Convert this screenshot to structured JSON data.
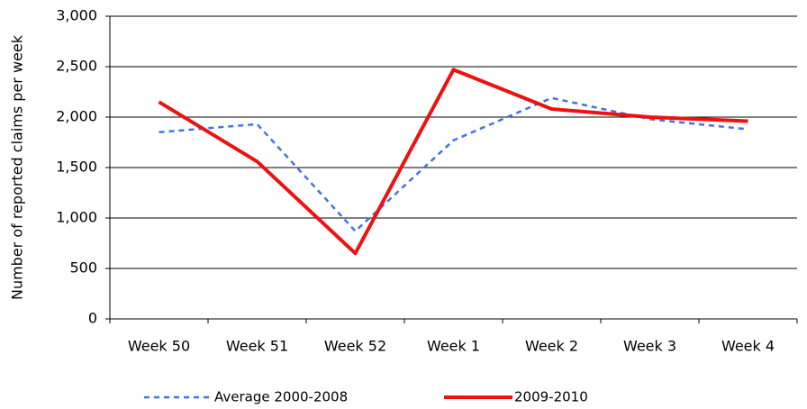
{
  "chart_data": {
    "type": "line",
    "y_label": "Number of reported claims per week",
    "categories": [
      "Week 50",
      "Week 51",
      "Week 52",
      "Week 1",
      "Week 2",
      "Week 3",
      "Week 4"
    ],
    "series": [
      {
        "name": "Average 2000-2008",
        "color": "#4472e4",
        "dashed": true,
        "values": [
          1850,
          1930,
          870,
          1770,
          2190,
          1980,
          1880
        ]
      },
      {
        "name": "2009-2010",
        "color": "#ee1111",
        "dashed": false,
        "values": [
          2150,
          1560,
          650,
          2470,
          2080,
          2000,
          1960
        ]
      }
    ],
    "ylim": [
      0,
      3000
    ],
    "yticks": [
      0,
      500,
      {
        "value": 1000,
        "label": "1,000"
      },
      {
        "value": 1500,
        "label": "1,500"
      },
      {
        "value": 2000,
        "label": "2,000"
      },
      {
        "value": 2500,
        "label": "2,500"
      },
      {
        "value": 3000,
        "label": "3,000"
      }
    ],
    "grid": true
  }
}
